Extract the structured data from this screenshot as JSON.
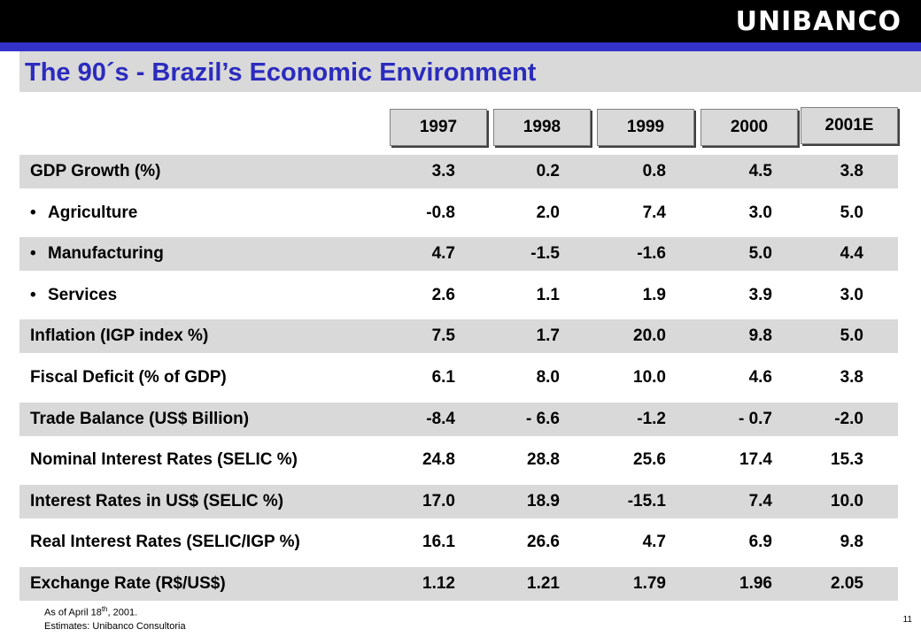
{
  "header": {
    "logo_text": "UNIBANCO"
  },
  "title": "The 90´s - Brazil’s Economic Environment",
  "years": [
    "1997",
    "1998",
    "1999",
    "2000",
    "2001E"
  ],
  "rows": [
    {
      "label": "GDP Growth (%)",
      "bullet": false,
      "values": [
        "3.3",
        "0.2",
        "0.8",
        "4.5",
        "3.8"
      ]
    },
    {
      "label": "Agriculture",
      "bullet": true,
      "values": [
        "-0.8",
        "2.0",
        "7.4",
        "3.0",
        "5.0"
      ]
    },
    {
      "label": "Manufacturing",
      "bullet": true,
      "values": [
        "4.7",
        "-1.5",
        "-1.6",
        "5.0",
        "4.4"
      ]
    },
    {
      "label": "Services",
      "bullet": true,
      "values": [
        "2.6",
        "1.1",
        "1.9",
        "3.9",
        "3.0"
      ]
    },
    {
      "label": "Inflation (IGP index %)",
      "bullet": false,
      "values": [
        "7.5",
        "1.7",
        "20.0",
        "9.8",
        "5.0"
      ]
    },
    {
      "label": "Fiscal Deficit (% of GDP)",
      "bullet": false,
      "values": [
        "6.1",
        "8.0",
        "10.0",
        "4.6",
        "3.8"
      ]
    },
    {
      "label": "Trade Balance (US$ Billion)",
      "bullet": false,
      "values": [
        "-8.4",
        "- 6.6",
        "-1.2",
        "- 0.7",
        "-2.0"
      ]
    },
    {
      "label": "Nominal Interest Rates (SELIC %)",
      "bullet": false,
      "values": [
        "24.8",
        "28.8",
        "25.6",
        "17.4",
        "15.3"
      ]
    },
    {
      "label": "Interest Rates in US$ (SELIC %)",
      "bullet": false,
      "values": [
        "17.0",
        "18.9",
        "-15.1",
        "7.4",
        "10.0"
      ]
    },
    {
      "label": "Real Interest Rates (SELIC/IGP %)",
      "bullet": false,
      "values": [
        "16.1",
        "26.6",
        "4.7",
        "6.9",
        "9.8"
      ]
    },
    {
      "label": "Exchange Rate (R$/US$)",
      "bullet": false,
      "values": [
        "1.12",
        "1.21",
        "1.79",
        "1.96",
        "2.05"
      ]
    }
  ],
  "footnotes": {
    "as_of_prefix": "As of April 18",
    "as_of_sup": "th",
    "as_of_suffix": ", 2001.",
    "estimates": "Estimates: Unibanco Consultoria"
  },
  "page_number": "11",
  "colors": {
    "title": "#2b2bbf",
    "accent_bar": "#3333cc",
    "shade": "#d9d9d9",
    "header_bar": "#000000"
  }
}
